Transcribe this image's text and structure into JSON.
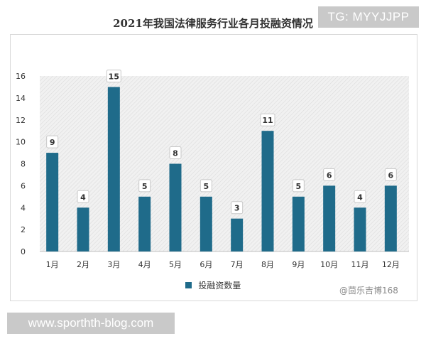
{
  "badges": {
    "top": "TG: MYYJJPP",
    "bottom": "www.sporthth-blog.com"
  },
  "watermark": "@茴乐吉博168",
  "colors": {
    "bar": "#1f6b8a",
    "plot_bg": "#ececec",
    "label_border": "#c8c8c8"
  },
  "chart_data": {
    "type": "bar",
    "title": "2021年我国法律服务行业各月投融资情况",
    "xlabel": "",
    "ylabel": "",
    "categories": [
      "1月",
      "2月",
      "3月",
      "4月",
      "5月",
      "6月",
      "7月",
      "8月",
      "9月",
      "10月",
      "11月",
      "12月"
    ],
    "series": [
      {
        "name": "投融资数量",
        "values": [
          9,
          4,
          15,
          5,
          8,
          5,
          3,
          11,
          5,
          6,
          4,
          6
        ]
      }
    ],
    "ylim": [
      0,
      16
    ],
    "yticks": [
      0,
      2,
      4,
      6,
      8,
      10,
      12,
      14,
      16
    ],
    "legend_position": "bottom",
    "data_labels": true
  }
}
